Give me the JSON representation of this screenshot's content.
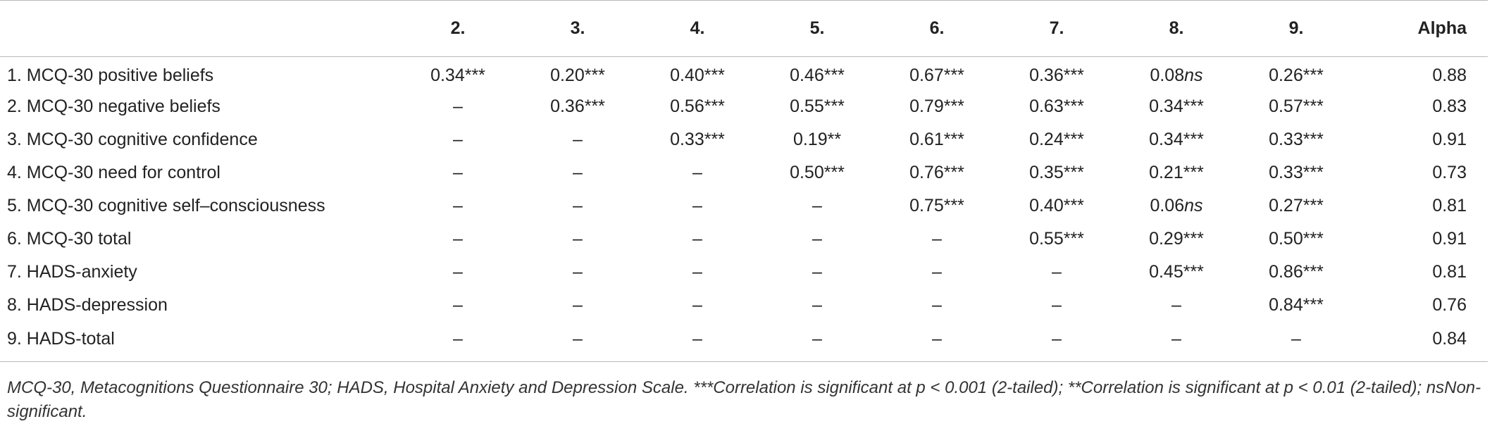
{
  "table": {
    "columns": [
      "",
      "2.",
      "3.",
      "4.",
      "5.",
      "6.",
      "7.",
      "8.",
      "9.",
      "Alpha"
    ],
    "rows": [
      {
        "label": "1. MCQ-30 positive beliefs",
        "cells": [
          "0.34***",
          "0.20***",
          "0.40***",
          "0.46***",
          "0.67***",
          "0.36***",
          "0.08ns",
          "0.26***",
          "0.88"
        ]
      },
      {
        "label": "2. MCQ-30 negative beliefs",
        "cells": [
          "–",
          "0.36***",
          "0.56***",
          "0.55***",
          "0.79***",
          "0.63***",
          "0.34***",
          "0.57***",
          "0.83"
        ]
      },
      {
        "label": "3. MCQ-30 cognitive confidence",
        "cells": [
          "–",
          "–",
          "0.33***",
          "0.19**",
          "0.61***",
          "0.24***",
          "0.34***",
          "0.33***",
          "0.91"
        ]
      },
      {
        "label": "4. MCQ-30 need for control",
        "cells": [
          "–",
          "–",
          "–",
          "0.50***",
          "0.76***",
          "0.35***",
          "0.21***",
          "0.33***",
          "0.73"
        ]
      },
      {
        "label": "5. MCQ-30 cognitive self–consciousness",
        "cells": [
          "–",
          "–",
          "–",
          "–",
          "0.75***",
          "0.40***",
          "0.06ns",
          "0.27***",
          "0.81"
        ]
      },
      {
        "label": "6. MCQ-30 total",
        "cells": [
          "–",
          "–",
          "–",
          "–",
          "–",
          "0.55***",
          "0.29***",
          "0.50***",
          "0.91"
        ]
      },
      {
        "label": "7. HADS-anxiety",
        "cells": [
          "–",
          "–",
          "–",
          "–",
          "–",
          "–",
          "0.45***",
          "0.86***",
          "0.81"
        ]
      },
      {
        "label": "8. HADS-depression",
        "cells": [
          "–",
          "–",
          "–",
          "–",
          "–",
          "–",
          "–",
          "0.84***",
          "0.76"
        ]
      },
      {
        "label": "9. HADS-total",
        "cells": [
          "–",
          "–",
          "–",
          "–",
          "–",
          "–",
          "–",
          "–",
          "0.84"
        ]
      }
    ]
  },
  "footnote": "MCQ-30, Metacognitions Questionnaire 30; HADS, Hospital Anxiety and Depression Scale. ***Correlation is significant at p < 0.001 (2-tailed); **Correlation is significant at p < 0.01 (2-tailed); nsNon-significant."
}
